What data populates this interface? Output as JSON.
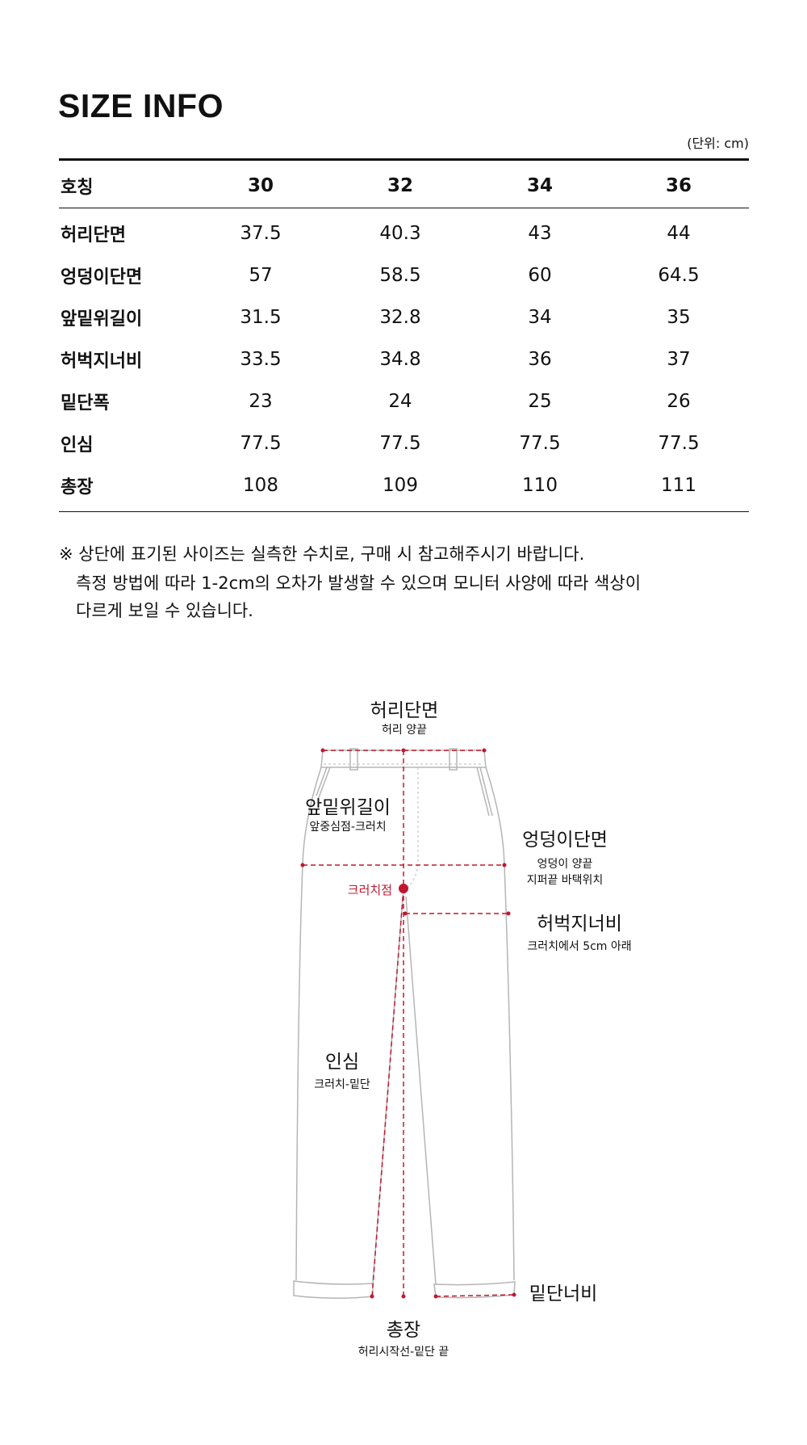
{
  "title": "SIZE INFO",
  "unit": "(단위: cm)",
  "table": {
    "header": [
      "호칭",
      "30",
      "32",
      "34",
      "36"
    ],
    "rows": [
      [
        "허리단면",
        "37.5",
        "40.3",
        "43",
        "44"
      ],
      [
        "엉덩이단면",
        "57",
        "58.5",
        "60",
        "64.5"
      ],
      [
        "앞밑위길이",
        "31.5",
        "32.8",
        "34",
        "35"
      ],
      [
        "허벅지너비",
        "33.5",
        "34.8",
        "36",
        "37"
      ],
      [
        "밑단폭",
        "23",
        "24",
        "25",
        "26"
      ],
      [
        "인심",
        "77.5",
        "77.5",
        "77.5",
        "77.5"
      ],
      [
        "총장",
        "108",
        "109",
        "110",
        "111"
      ]
    ]
  },
  "notes": [
    "※ 상단에 표기된 사이즈는 실측한 수치로, 구매 시 참고해주시기 바랍니다.",
    "측정 방법에 따라 1-2cm의 오차가 발생할 수 있으며 모니터 사양에 따라 색상이",
    "다르게 보일 수 있습니다."
  ],
  "diagram": {
    "waist": {
      "title": "허리단면",
      "sub": "허리 양끝"
    },
    "rise": {
      "title": "앞밑위길이",
      "sub": "앞중심점-크러치"
    },
    "hip": {
      "title": "엉덩이단면",
      "sub1": "엉덩이 양끝",
      "sub2": "지퍼끝 바택위치"
    },
    "crotch_point": "크러치점",
    "thigh": {
      "title": "허벅지너비",
      "sub": "크러치에서 5cm 아래"
    },
    "inseam": {
      "title": "인심",
      "sub": "크러치-밑단"
    },
    "hem": {
      "title": "밑단너비"
    },
    "length": {
      "title": "총장",
      "sub": "허리시작선-밑단 끝"
    }
  },
  "colors": {
    "accent": "#c0182f",
    "outline": "#b5b5b5",
    "text": "#111111"
  }
}
